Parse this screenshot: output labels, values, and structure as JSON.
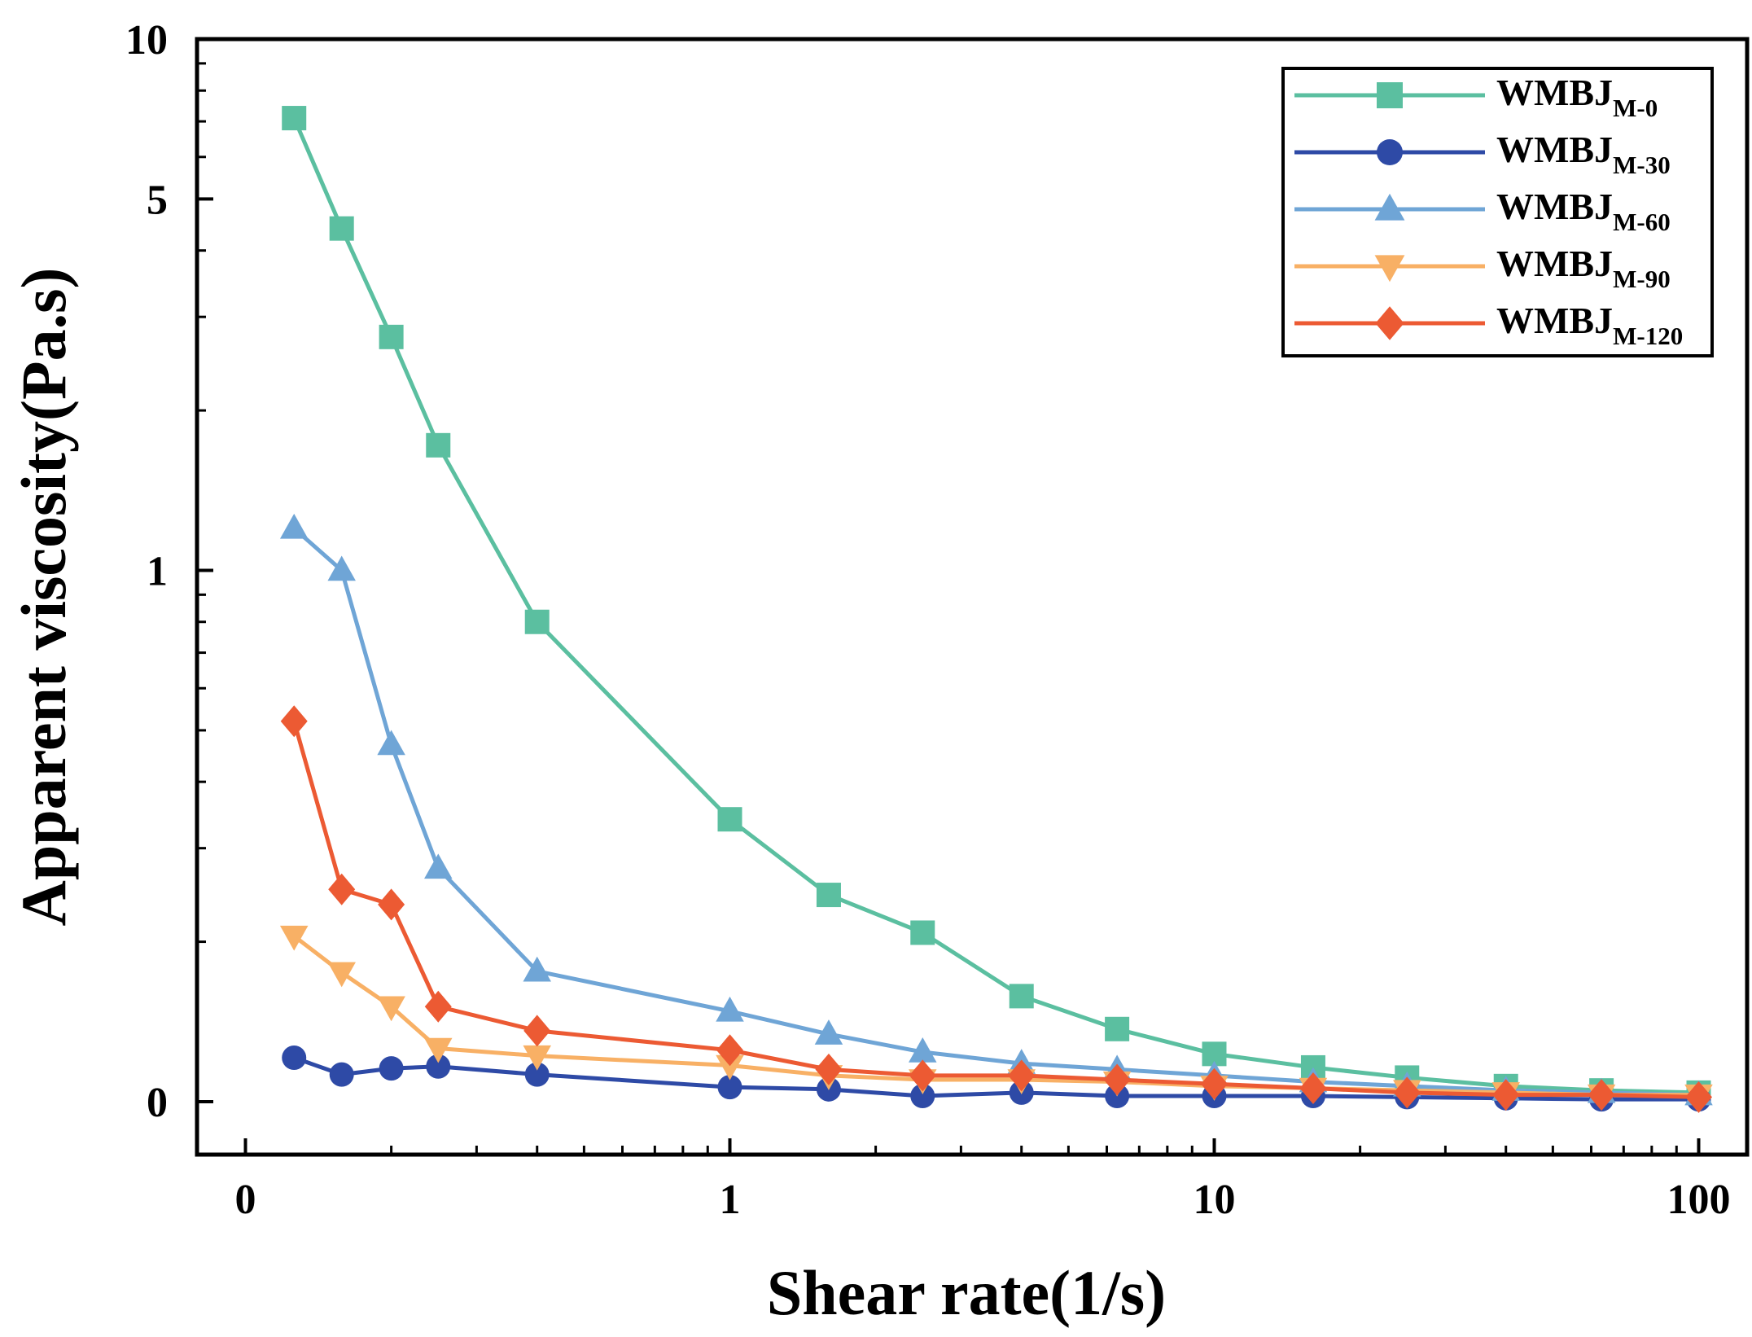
{
  "chart_data": {
    "type": "line",
    "title": "",
    "xlabel": "Shear rate(1/s)",
    "ylabel": "Apparent viscosity(Pa.s)",
    "x_scale": "log",
    "y_scale": "log",
    "xlim": [
      0.1,
      100
    ],
    "ylim": [
      0.0,
      10
    ],
    "x_ticks": [
      {
        "value": 0.1,
        "label": "0"
      },
      {
        "value": 1,
        "label": "1"
      },
      {
        "value": 10,
        "label": "10"
      },
      {
        "value": 100,
        "label": "100"
      }
    ],
    "y_ticks": [
      {
        "value": 0.1,
        "label": "0"
      },
      {
        "value": 1,
        "label": "1"
      },
      {
        "value": 5,
        "label": "5"
      },
      {
        "value": 10,
        "label": "10"
      }
    ],
    "legend_position": "top-right",
    "x": [
      0.126,
      0.158,
      0.2,
      0.25,
      0.4,
      1,
      1.6,
      2.5,
      4,
      6.3,
      10,
      16,
      25,
      40,
      63,
      100
    ],
    "series": [
      {
        "name": "WMBJ",
        "subscript": "M-0",
        "color": "#5BBFA0",
        "marker": "square",
        "values": [
          7.1,
          4.4,
          2.75,
          1.72,
          0.8,
          0.34,
          0.245,
          0.208,
          0.158,
          0.137,
          0.123,
          0.116,
          0.111,
          0.107,
          0.105,
          0.104
        ]
      },
      {
        "name": "WMBJ",
        "subscript": "M-30",
        "color": "#2E4AA6",
        "marker": "circle",
        "values": [
          0.121,
          0.1125,
          0.1155,
          0.1165,
          0.1125,
          0.1065,
          0.1055,
          0.1025,
          0.104,
          0.1025,
          0.1025,
          0.1025,
          0.102,
          0.1015,
          0.101,
          0.101
        ]
      },
      {
        "name": "WMBJ",
        "subscript": "M-60",
        "color": "#6FA5D6",
        "marker": "triangle-up",
        "values": [
          1.2,
          1.0,
          0.47,
          0.275,
          0.176,
          0.148,
          0.134,
          0.124,
          0.118,
          0.115,
          0.112,
          0.109,
          0.107,
          0.105,
          0.104,
          0.103
        ]
      },
      {
        "name": "WMBJ",
        "subscript": "M-90",
        "color": "#F8B065",
        "marker": "triangle-down",
        "values": [
          0.205,
          0.175,
          0.151,
          0.126,
          0.122,
          0.117,
          0.112,
          0.11,
          0.11,
          0.109,
          0.107,
          0.106,
          0.105,
          0.104,
          0.103,
          0.103
        ]
      },
      {
        "name": "WMBJ",
        "subscript": "M-120",
        "color": "#EC5A33",
        "marker": "diamond",
        "values": [
          0.52,
          0.251,
          0.235,
          0.151,
          0.136,
          0.125,
          0.115,
          0.112,
          0.112,
          0.11,
          0.108,
          0.106,
          0.104,
          0.103,
          0.103,
          0.102
        ]
      }
    ]
  }
}
